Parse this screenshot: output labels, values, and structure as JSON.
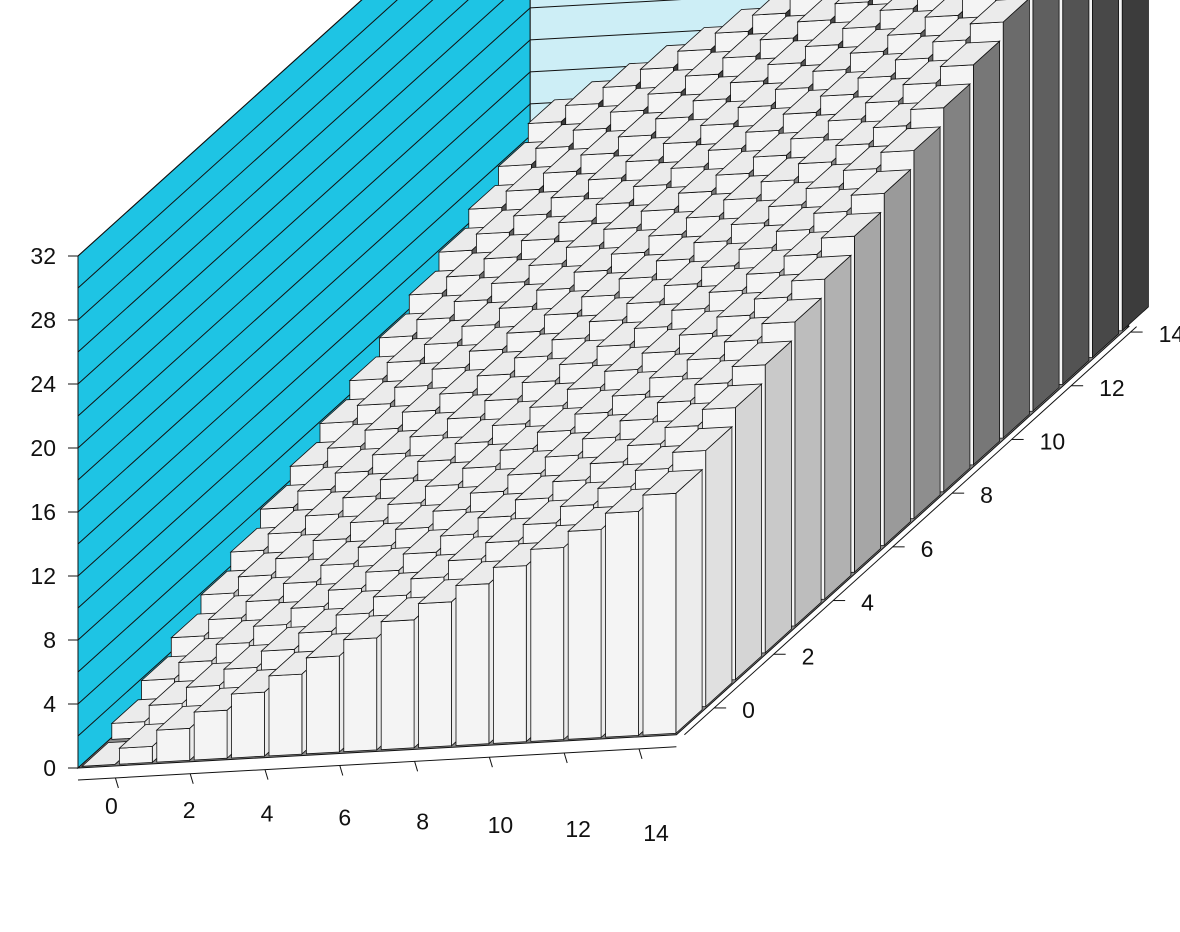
{
  "chart_data": {
    "type": "bar3d",
    "x": [
      0,
      1,
      2,
      3,
      4,
      5,
      6,
      7,
      8,
      9,
      10,
      11,
      12,
      13,
      14,
      15
    ],
    "y": [
      0,
      1,
      2,
      3,
      4,
      5,
      6,
      7,
      8,
      9,
      10,
      11,
      12,
      13,
      14,
      15
    ],
    "value_rule": "z = x + y",
    "values": [
      [
        0,
        1,
        2,
        3,
        4,
        5,
        6,
        7,
        8,
        9,
        10,
        11,
        12,
        13,
        14,
        15
      ],
      [
        1,
        2,
        3,
        4,
        5,
        6,
        7,
        8,
        9,
        10,
        11,
        12,
        13,
        14,
        15,
        16
      ],
      [
        2,
        3,
        4,
        5,
        6,
        7,
        8,
        9,
        10,
        11,
        12,
        13,
        14,
        15,
        16,
        17
      ],
      [
        3,
        4,
        5,
        6,
        7,
        8,
        9,
        10,
        11,
        12,
        13,
        14,
        15,
        16,
        17,
        18
      ],
      [
        4,
        5,
        6,
        7,
        8,
        9,
        10,
        11,
        12,
        13,
        14,
        15,
        16,
        17,
        18,
        19
      ],
      [
        5,
        6,
        7,
        8,
        9,
        10,
        11,
        12,
        13,
        14,
        15,
        16,
        17,
        18,
        19,
        20
      ],
      [
        6,
        7,
        8,
        9,
        10,
        11,
        12,
        13,
        14,
        15,
        16,
        17,
        18,
        19,
        20,
        21
      ],
      [
        7,
        8,
        9,
        10,
        11,
        12,
        13,
        14,
        15,
        16,
        17,
        18,
        19,
        20,
        21,
        22
      ],
      [
        8,
        9,
        10,
        11,
        12,
        13,
        14,
        15,
        16,
        17,
        18,
        19,
        20,
        21,
        22,
        23
      ],
      [
        9,
        10,
        11,
        12,
        13,
        14,
        15,
        16,
        17,
        18,
        19,
        20,
        21,
        22,
        23,
        24
      ],
      [
        10,
        11,
        12,
        13,
        14,
        15,
        16,
        17,
        18,
        19,
        20,
        21,
        22,
        23,
        24,
        25
      ],
      [
        11,
        12,
        13,
        14,
        15,
        16,
        17,
        18,
        19,
        20,
        21,
        22,
        23,
        24,
        25,
        26
      ],
      [
        12,
        13,
        14,
        15,
        16,
        17,
        18,
        19,
        20,
        21,
        22,
        23,
        24,
        25,
        26,
        27
      ],
      [
        13,
        14,
        15,
        16,
        17,
        18,
        19,
        20,
        21,
        22,
        23,
        24,
        25,
        26,
        27,
        28
      ],
      [
        14,
        15,
        16,
        17,
        18,
        19,
        20,
        21,
        22,
        23,
        24,
        25,
        26,
        27,
        28,
        29
      ],
      [
        15,
        16,
        17,
        18,
        19,
        20,
        21,
        22,
        23,
        24,
        25,
        26,
        27,
        28,
        29,
        30
      ]
    ],
    "x_tick_labels": [
      "0",
      "2",
      "4",
      "6",
      "8",
      "10",
      "12",
      "14"
    ],
    "y_tick_labels": [
      "0",
      "2",
      "4",
      "6",
      "8",
      "10",
      "12",
      "14"
    ],
    "z_tick_labels": [
      "0",
      "4",
      "8",
      "12",
      "16",
      "20",
      "24",
      "28",
      "32"
    ],
    "zlim": [
      0,
      32
    ],
    "z_grid_step": 2,
    "title": "",
    "xlabel": "",
    "ylabel": "",
    "zlabel": "",
    "grid": true,
    "colors": {
      "left_wall": "#1ec4e4",
      "back_wall": "#cdeef6",
      "floor": "#8a8a8a",
      "bar_top": "#ebebeb",
      "bar_front_light": "#f4f4f4",
      "bar_side_dark": "#3c3c3c",
      "grid_line": "#111111"
    }
  }
}
